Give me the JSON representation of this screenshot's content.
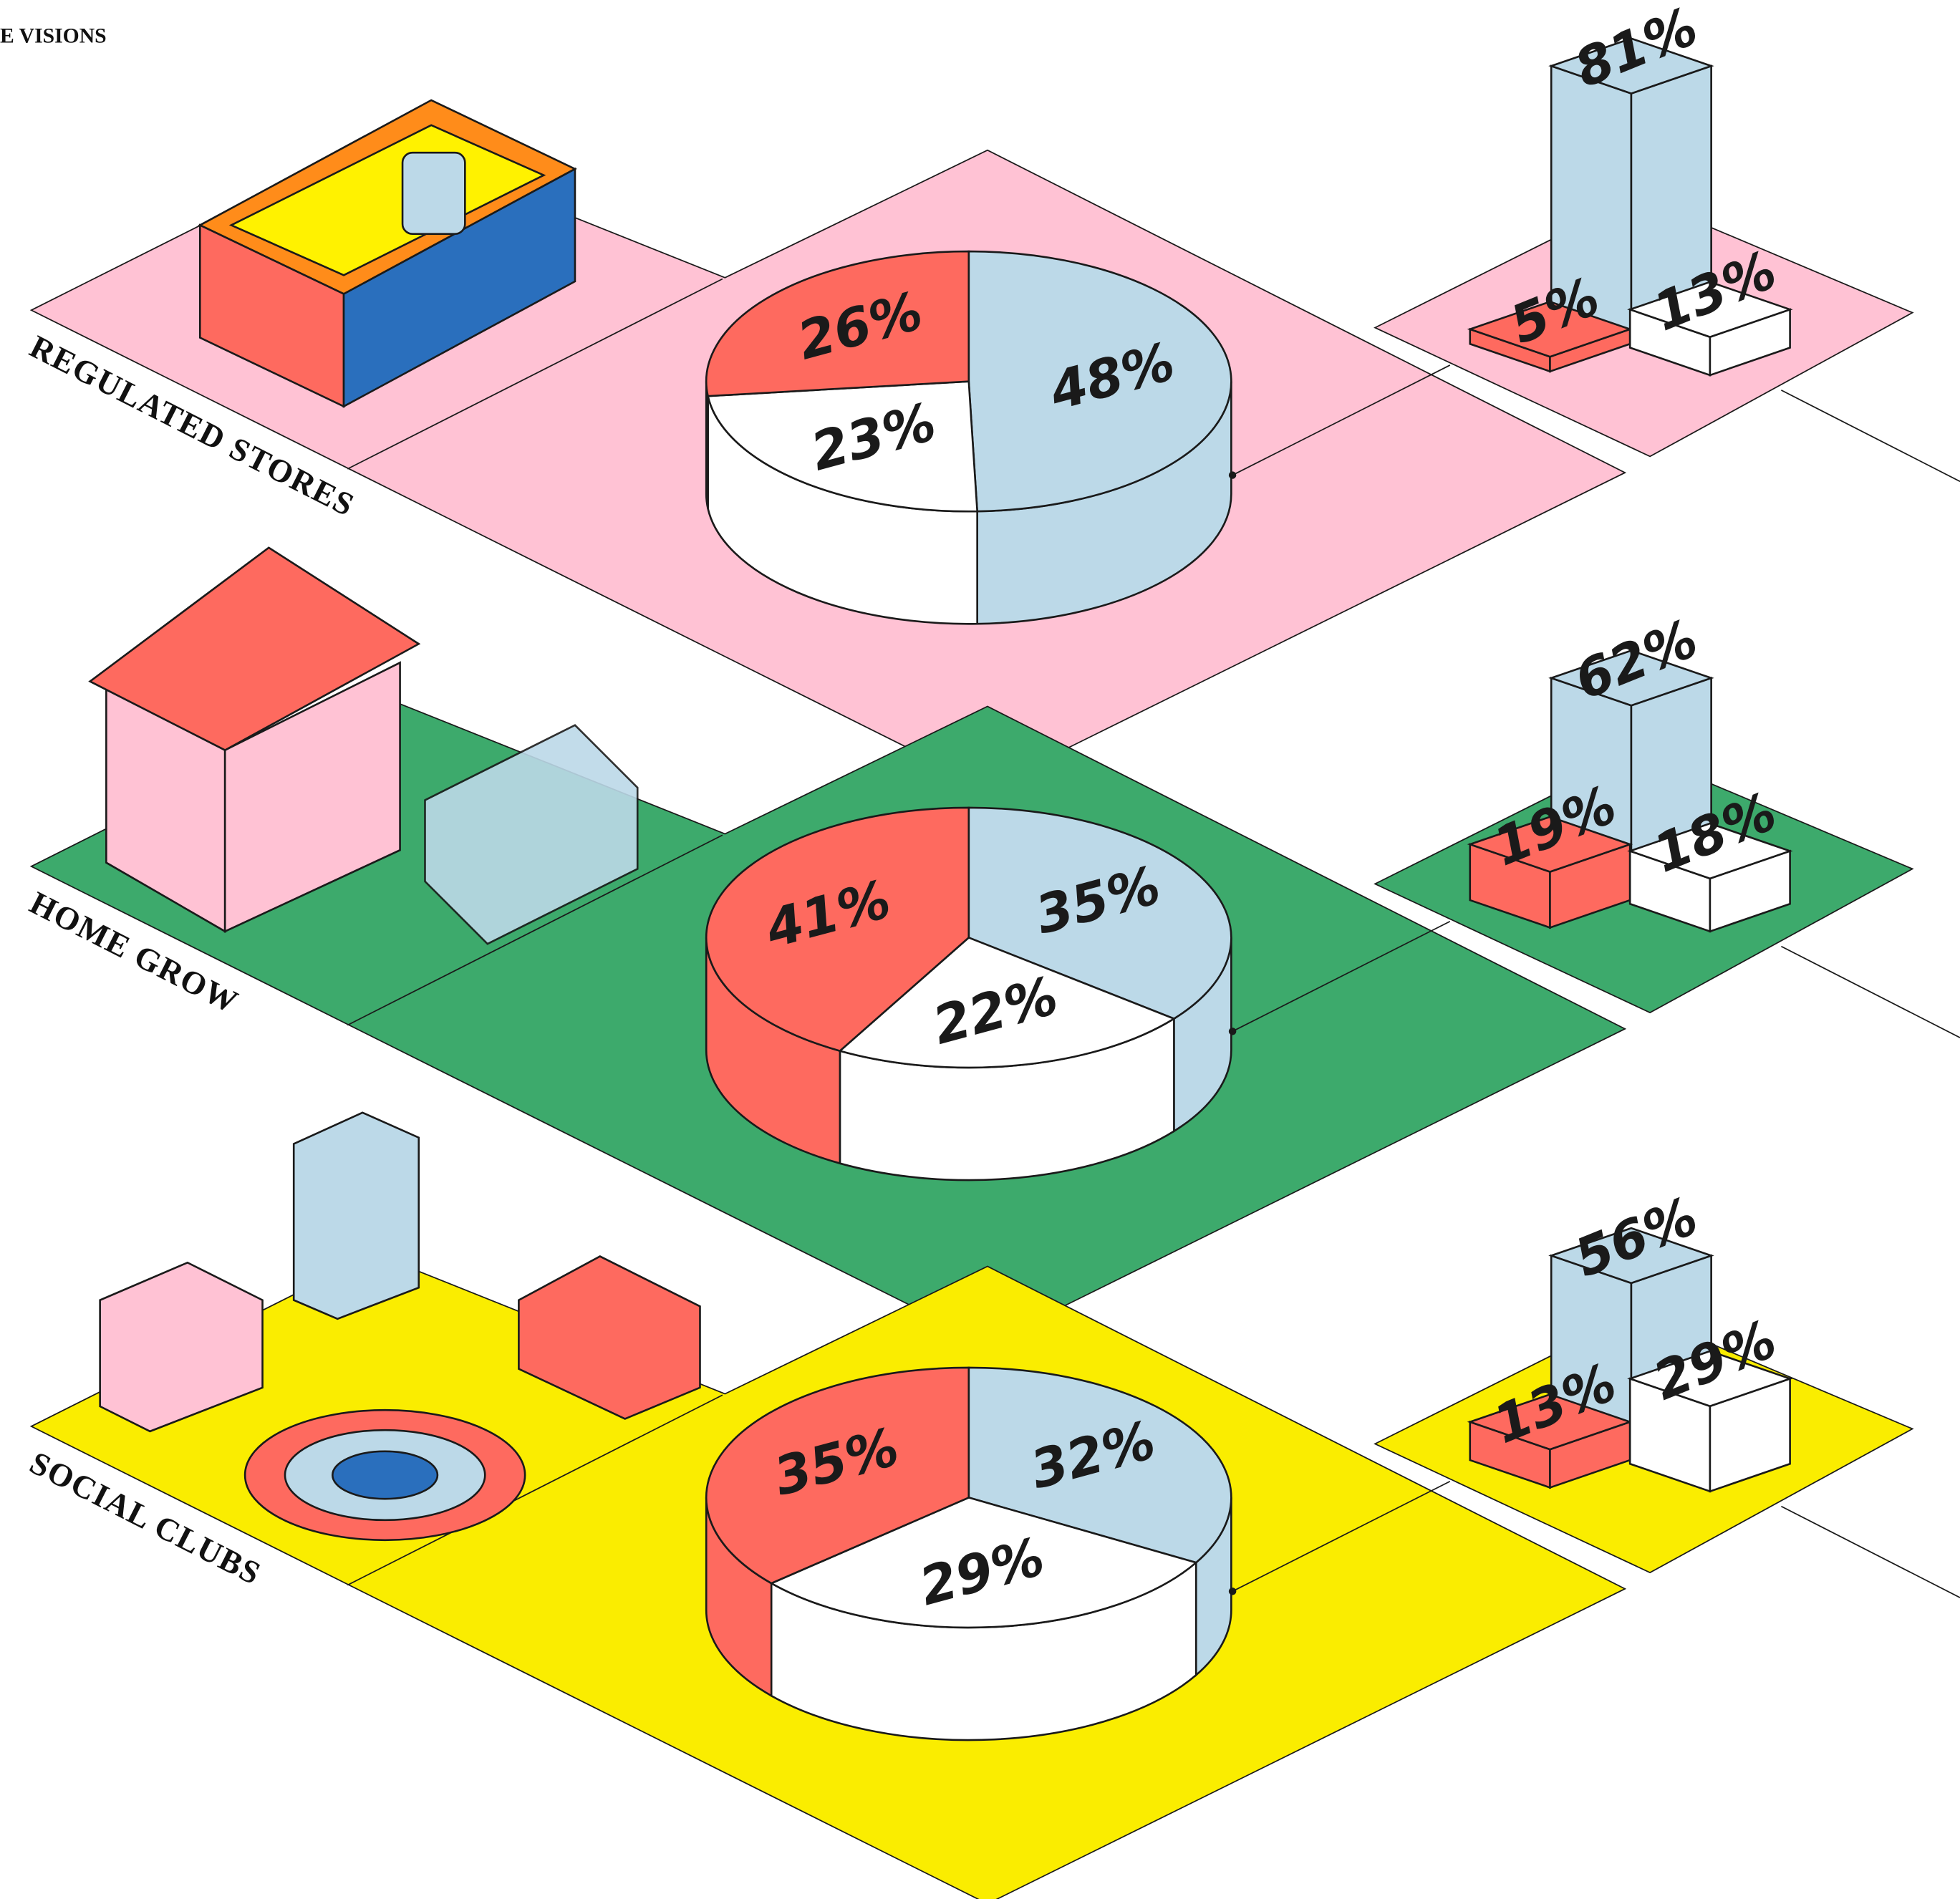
{
  "header": {
    "title": "E VISIONS"
  },
  "chart_data": [
    {
      "type": "pie",
      "title": "REGULATED STORES",
      "values": [
        48,
        23,
        26
      ],
      "value_labels": [
        "48%",
        "23%",
        "26%"
      ],
      "colors": [
        "#bcd9e8",
        "#ffffff",
        "#fe6a5f"
      ],
      "ground": "#ffc2d4"
    },
    {
      "type": "bar",
      "values": [
        81,
        5,
        13
      ],
      "value_labels": [
        "81%",
        "5%",
        "13%"
      ],
      "colors": [
        "#bcd9e8",
        "#fe6a5f",
        "#ffffff"
      ],
      "ground": "#ffc2d4"
    },
    {
      "type": "pie",
      "title": "HOME GROW",
      "values": [
        35,
        22,
        41
      ],
      "value_labels": [
        "35%",
        "22%",
        "41%"
      ],
      "colors": [
        "#bcd9e8",
        "#ffffff",
        "#fe6a5f"
      ],
      "ground": "#3daa6c"
    },
    {
      "type": "bar",
      "values": [
        62,
        19,
        18
      ],
      "value_labels": [
        "62%",
        "19%",
        "18%"
      ],
      "colors": [
        "#bcd9e8",
        "#fe6a5f",
        "#ffffff"
      ],
      "ground": "#3daa6c"
    },
    {
      "type": "pie",
      "title": "SOCIAL CLUBS",
      "values": [
        32,
        29,
        35
      ],
      "value_labels": [
        "32%",
        "29%",
        "35%"
      ],
      "colors": [
        "#bcd9e8",
        "#ffffff",
        "#fe6a5f"
      ],
      "ground": "#faed00"
    },
    {
      "type": "bar",
      "values": [
        56,
        13,
        29
      ],
      "value_labels": [
        "56%",
        "13%",
        "29%"
      ],
      "colors": [
        "#bcd9e8",
        "#fe6a5f",
        "#ffffff"
      ],
      "ground": "#faed00"
    }
  ]
}
